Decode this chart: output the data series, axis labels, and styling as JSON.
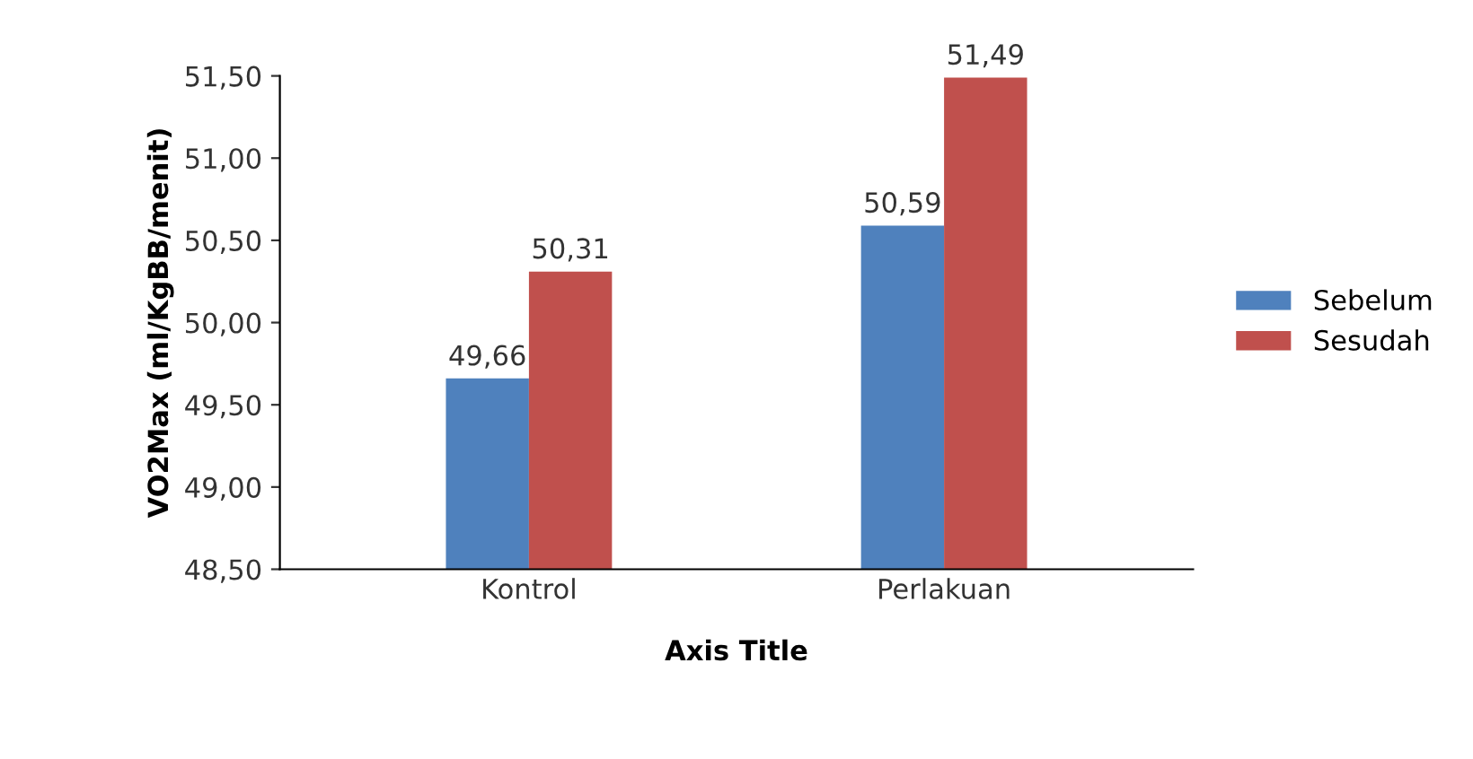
{
  "chart_data": {
    "type": "bar",
    "xlabel": "Axis Title",
    "ylabel": "VO2Max (ml/KgBB/menit)",
    "categories": [
      "Kontrol",
      "Perlakuan"
    ],
    "series": [
      {
        "name": "Sebelum",
        "color": "#4f81bd",
        "values": [
          49.66,
          50.59
        ],
        "value_labels": [
          "49,66",
          "50,59"
        ]
      },
      {
        "name": "Sesudah",
        "color": "#c0504d",
        "values": [
          50.31,
          51.49
        ],
        "value_labels": [
          "50,31",
          "51,49"
        ]
      }
    ],
    "ylim": [
      48.5,
      51.5
    ],
    "yticks": [
      {
        "value": 48.5,
        "label": "48,50"
      },
      {
        "value": 49,
        "label": "49,00"
      },
      {
        "value": 49.5,
        "label": "49,50"
      },
      {
        "value": 50,
        "label": "50,00"
      },
      {
        "value": 50.5,
        "label": "50,50"
      },
      {
        "value": 51,
        "label": "51,00"
      },
      {
        "value": 51.5,
        "label": "51,50"
      }
    ],
    "grid": false,
    "legend": "right"
  }
}
